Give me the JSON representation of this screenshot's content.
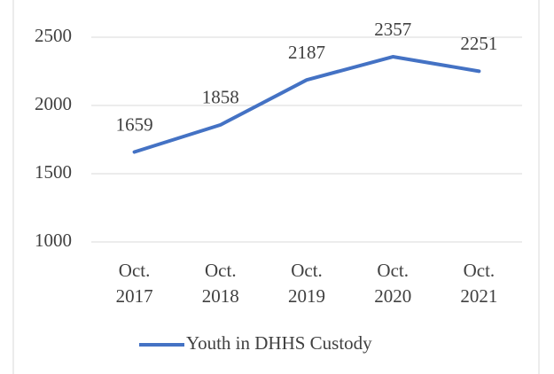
{
  "chart_data": {
    "type": "line",
    "categories": [
      "Oct. 2017",
      "Oct. 2018",
      "Oct. 2019",
      "Oct. 2020",
      "Oct. 2021"
    ],
    "series": [
      {
        "name": "Youth in DHHS Custody",
        "color": "#4472c4",
        "values": [
          1659,
          1858,
          2187,
          2357,
          2251
        ]
      }
    ],
    "ylim": [
      1000,
      2500
    ],
    "yticks": [
      1000,
      1500,
      2000,
      2500
    ],
    "grid": true,
    "legend": "bottom",
    "data_labels": true
  }
}
